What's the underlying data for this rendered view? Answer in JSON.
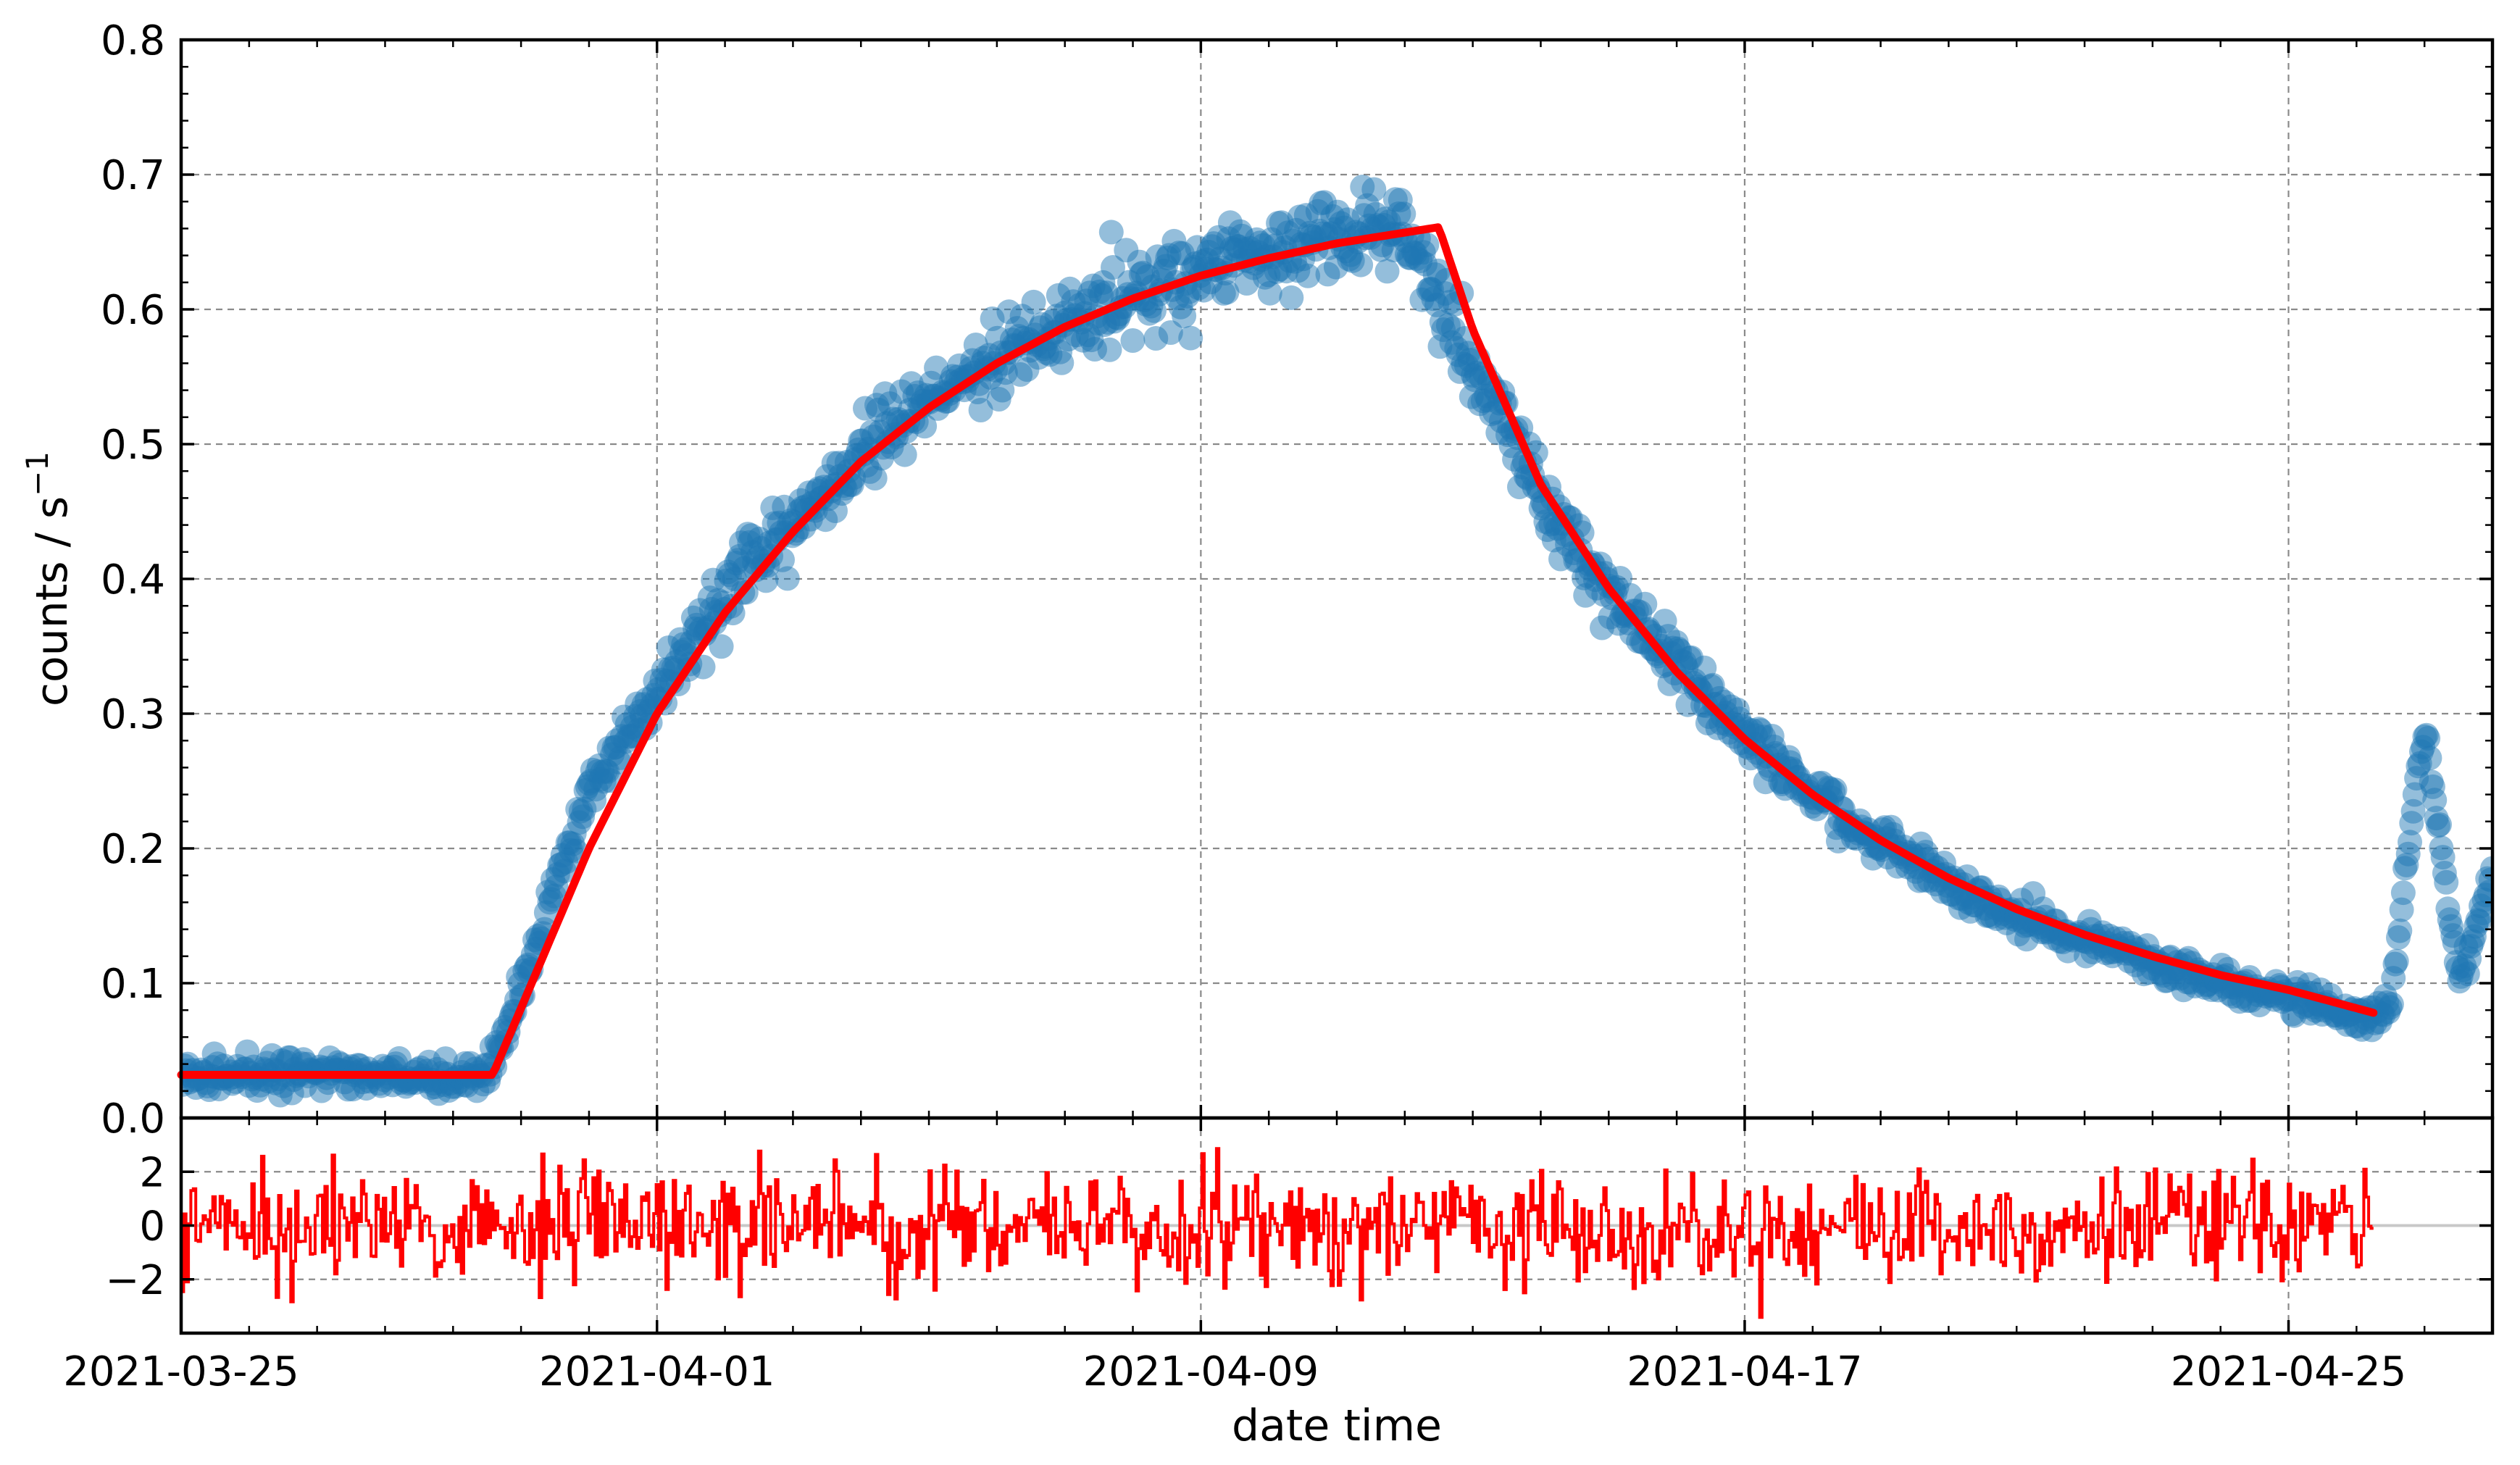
{
  "chart_data": [
    {
      "panel": "main",
      "type": "scatter",
      "title": "",
      "xlabel": "",
      "ylabel": "counts / s",
      "ylabel_superscript": "−1",
      "xlim": [
        "2021-03-25",
        "2021-04-28"
      ],
      "ylim": [
        0.0,
        0.8
      ],
      "yticks": [
        "0.0",
        "0.1",
        "0.2",
        "0.3",
        "0.4",
        "0.5",
        "0.6",
        "0.7",
        "0.8"
      ],
      "grid": true,
      "colors": {
        "points": "#1f77b4",
        "model": "#ff0000"
      },
      "series": [
        {
          "kind": "observed",
          "type": "scatter",
          "x": [
            "2021-03-25",
            "2021-03-26",
            "2021-03-27",
            "2021-03-28",
            "2021-03-29",
            "2021-03-29T12",
            "2021-03-30",
            "2021-03-30T12",
            "2021-03-31",
            "2021-04-01",
            "2021-04-02",
            "2021-04-03",
            "2021-04-04",
            "2021-04-05",
            "2021-04-06",
            "2021-04-07",
            "2021-04-08",
            "2021-04-09",
            "2021-04-10",
            "2021-04-11",
            "2021-04-12",
            "2021-04-13",
            "2021-04-14",
            "2021-04-15",
            "2021-04-16",
            "2021-04-17",
            "2021-04-18",
            "2021-04-19",
            "2021-04-20",
            "2021-04-21",
            "2021-04-22",
            "2021-04-23",
            "2021-04-24",
            "2021-04-25",
            "2021-04-26",
            "2021-04-26T12",
            "2021-04-27",
            "2021-04-27T12",
            "2021-04-28"
          ],
          "y": [
            0.03,
            0.031,
            0.032,
            0.031,
            0.03,
            0.032,
            0.095,
            0.17,
            0.245,
            0.315,
            0.385,
            0.44,
            0.492,
            0.53,
            0.562,
            0.59,
            0.612,
            0.628,
            0.642,
            0.652,
            0.662,
            0.56,
            0.462,
            0.39,
            0.335,
            0.285,
            0.24,
            0.205,
            0.175,
            0.15,
            0.132,
            0.115,
            0.1,
            0.09,
            0.075,
            0.08,
            0.3,
            0.1,
            0.18
          ]
        },
        {
          "kind": "model",
          "type": "line",
          "x": [
            "2021-03-25",
            "2021-03-29T14",
            "2021-03-31",
            "2021-04-01",
            "2021-04-02",
            "2021-04-03",
            "2021-04-04",
            "2021-04-05",
            "2021-04-06",
            "2021-04-07",
            "2021-04-08",
            "2021-04-09",
            "2021-04-10",
            "2021-04-11",
            "2021-04-12T12",
            "2021-04-13",
            "2021-04-14",
            "2021-04-15",
            "2021-04-16",
            "2021-04-17",
            "2021-04-18",
            "2021-04-19",
            "2021-04-20",
            "2021-04-21",
            "2021-04-22",
            "2021-04-23",
            "2021-04-24",
            "2021-04-25",
            "2021-04-26T06"
          ],
          "y": [
            0.032,
            0.032,
            0.2,
            0.3,
            0.375,
            0.435,
            0.487,
            0.527,
            0.56,
            0.587,
            0.608,
            0.625,
            0.638,
            0.649,
            0.661,
            0.585,
            0.47,
            0.393,
            0.331,
            0.281,
            0.24,
            0.206,
            0.178,
            0.155,
            0.136,
            0.12,
            0.106,
            0.095,
            0.078
          ]
        }
      ]
    },
    {
      "panel": "residuals",
      "type": "bar",
      "title": "",
      "xlabel": "date time",
      "ylabel": "",
      "xlim": [
        "2021-03-25",
        "2021-04-28"
      ],
      "ylim": [
        -4,
        4
      ],
      "yticks": [
        "−2",
        "0",
        "2"
      ],
      "xticks": [
        "2021-03-25",
        "2021-04-01",
        "2021-04-09",
        "2021-04-17",
        "2021-04-25"
      ],
      "x_range": [
        "2021-03-25",
        "2021-04-26T06"
      ],
      "spread": "approximately ±3 (standard normal scatter around 0)",
      "grid": true,
      "colors": {
        "residual": "#ff0000",
        "zero_line": "#c8c8c8"
      }
    }
  ]
}
